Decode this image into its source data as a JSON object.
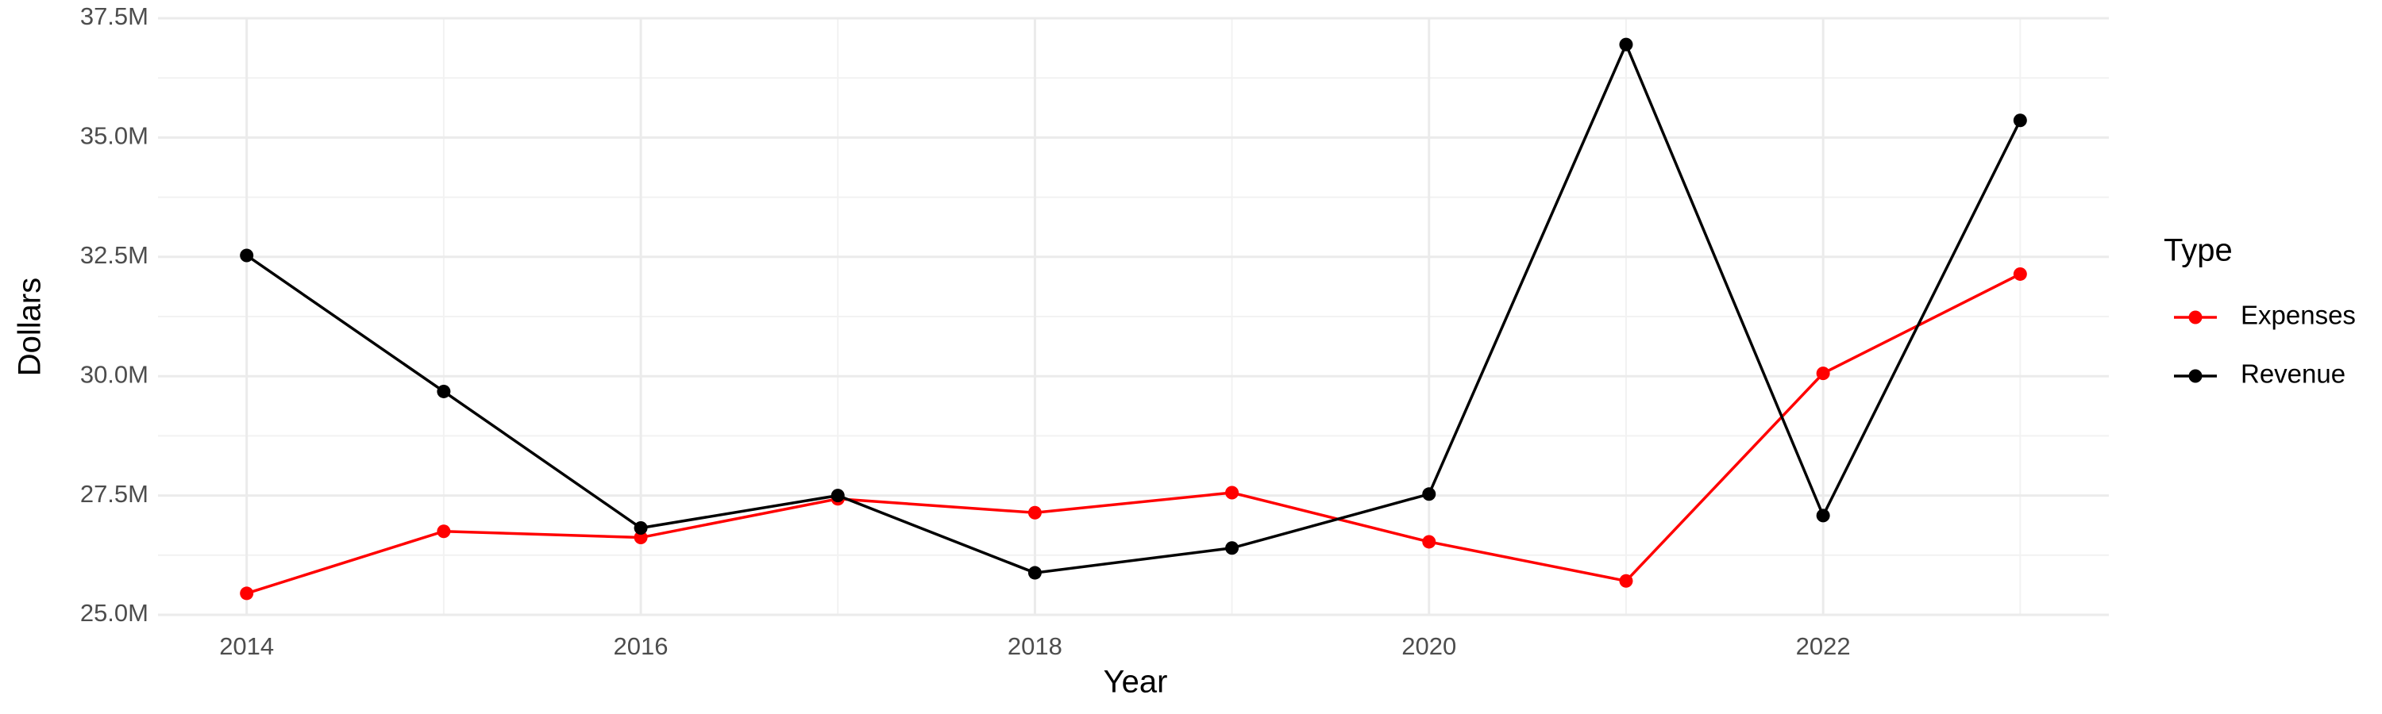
{
  "chart_data": {
    "type": "line",
    "x_label": "Year",
    "y_label": "Dollars",
    "legend_title": "Type",
    "x": [
      2014,
      2015,
      2016,
      2017,
      2018,
      2019,
      2020,
      2021,
      2022,
      2023
    ],
    "series": [
      {
        "name": "Expenses",
        "color": "#ff0000",
        "values": [
          25450000,
          26750000,
          26620000,
          27430000,
          27140000,
          27560000,
          26530000,
          25710000,
          30060000,
          32140000
        ]
      },
      {
        "name": "Revenue",
        "color": "#000000",
        "values": [
          32530000,
          29680000,
          26820000,
          27500000,
          25880000,
          26400000,
          27530000,
          36950000,
          27080000,
          35360000
        ]
      }
    ],
    "xlim": [
      2013.55,
      2023.45
    ],
    "xticks": [
      2014,
      2016,
      2018,
      2020,
      2022
    ],
    "ylim": [
      25000000,
      37500000
    ],
    "yticks": [
      {
        "value": 25000000,
        "label": "25.0M"
      },
      {
        "value": 27500000,
        "label": "27.5M"
      },
      {
        "value": 30000000,
        "label": "30.0M"
      },
      {
        "value": 32500000,
        "label": "32.5M"
      },
      {
        "value": 35000000,
        "label": "35.0M"
      },
      {
        "value": 37500000,
        "label": "37.5M"
      }
    ],
    "grid": true
  }
}
